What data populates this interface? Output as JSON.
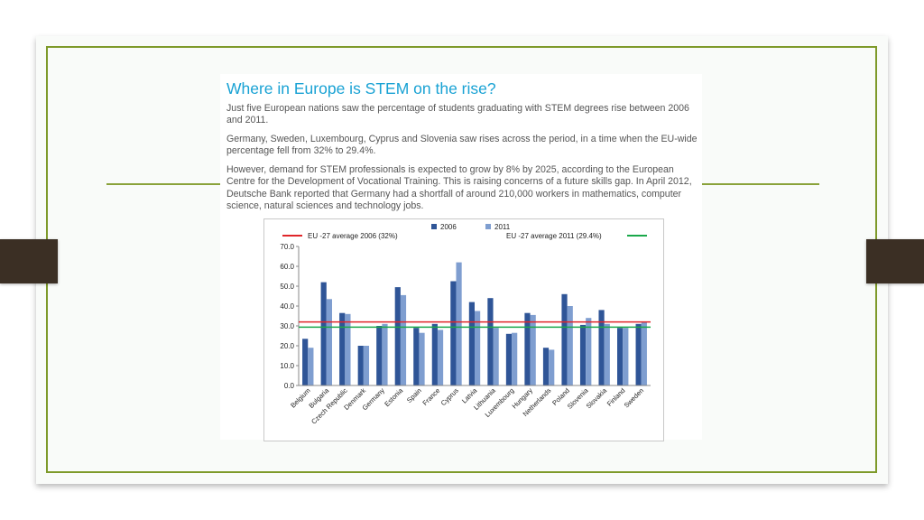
{
  "slide": {
    "title": "Where in Europe is STEM on the rise?",
    "paragraphs": [
      "Just five European nations saw the percentage of students graduating with STEM degrees rise between 2006 and 2011.",
      "Germany, Sweden, Luxembourg, Cyprus and Slovenia saw rises across the period, in a time when the EU-wide percentage fell from 32% to 29.4%.",
      "However, demand for STEM professionals is expected to grow by 8% by 2025, according to the European Centre for the Development of Vocational Training. This is raising concerns of a future skills gap. In April 2012, Deutsche Bank reported that Germany had a shortfall of around 210,000 workers in mathematics, computer science, natural sciences and technology jobs."
    ]
  },
  "colors": {
    "title": "#19a2d4",
    "frame": "#7e9a2a",
    "tab": "#3b2f24",
    "bar_2006": "#2f5597",
    "bar_2011": "#7f9ed0",
    "avg_2006": "#e0262a",
    "avg_2011": "#1aa84a"
  },
  "chart_data": {
    "type": "bar",
    "categories": [
      "Belgium",
      "Bulgaria",
      "Czech Republic",
      "Denmark",
      "Germany",
      "Estonia",
      "Spain",
      "France",
      "Cyprus",
      "Latvia",
      "Lithuania",
      "Luxembourg",
      "Hungary",
      "Netherlands",
      "Poland",
      "Slovenia",
      "Slovakia",
      "Finland",
      "Sweden"
    ],
    "series": [
      {
        "name": "2006",
        "values": [
          23.5,
          52.0,
          36.5,
          20.0,
          30.0,
          49.5,
          29.0,
          31.0,
          52.5,
          42.0,
          44.0,
          26.0,
          36.5,
          19.0,
          46.0,
          30.5,
          38.0,
          29.0,
          31.0
        ]
      },
      {
        "name": "2011",
        "values": [
          19.0,
          43.5,
          36.0,
          20.0,
          31.0,
          45.5,
          26.5,
          28.0,
          62.0,
          37.5,
          29.0,
          26.5,
          35.5,
          18.0,
          40.0,
          34.0,
          31.0,
          29.0,
          32.0
        ]
      }
    ],
    "reference_lines": [
      {
        "name": "EU -27 average 2006 (32%)",
        "value": 32.0
      },
      {
        "name": "EU -27 average 2011 (29.4%)",
        "value": 29.4
      }
    ],
    "y_ticks": [
      "0.0",
      "10.0",
      "20.0",
      "30.0",
      "40.0",
      "50.0",
      "60.0",
      "70.0"
    ],
    "ylim": [
      0,
      70
    ],
    "grid": false,
    "legend": "top"
  }
}
